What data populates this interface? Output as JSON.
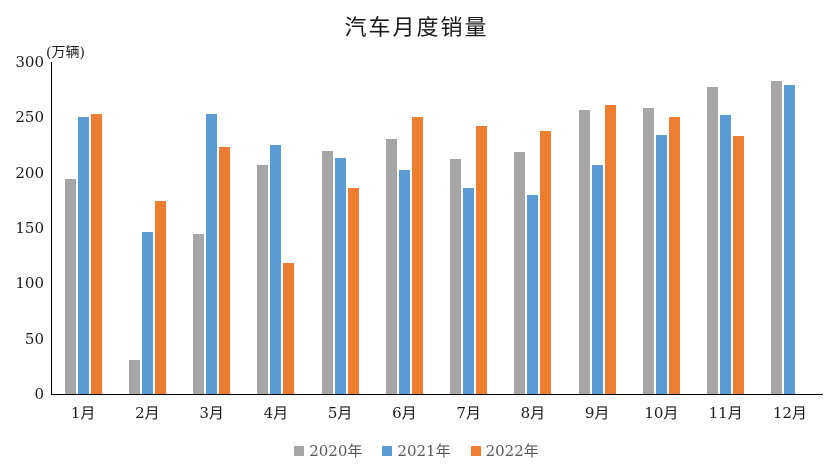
{
  "chart_data": {
    "type": "bar",
    "title": "汽车月度销量",
    "ylabel": "(万辆)",
    "xlabel": "",
    "categories": [
      "1月",
      "2月",
      "3月",
      "4月",
      "5月",
      "6月",
      "7月",
      "8月",
      "9月",
      "10月",
      "11月",
      "12月"
    ],
    "series": [
      {
        "name": "2020年",
        "color": "#A6A6A6",
        "values": [
          194,
          31,
          145,
          207,
          220,
          230,
          212,
          219,
          257,
          258,
          277,
          283
        ]
      },
      {
        "name": "2021年",
        "color": "#5B9BD5",
        "values": [
          250,
          146,
          253,
          225,
          213,
          202,
          186,
          180,
          207,
          234,
          252,
          279
        ]
      },
      {
        "name": "2022年",
        "color": "#ED7D31",
        "values": [
          253,
          174,
          223,
          118,
          186,
          250,
          242,
          238,
          261,
          250,
          233,
          null
        ]
      }
    ],
    "ylim": [
      0,
      300
    ],
    "y_ticks": [
      0,
      50,
      100,
      150,
      200,
      250,
      300
    ],
    "grid": false,
    "legend_position": "bottom"
  },
  "colors": {
    "background": "#ffffff",
    "axis": "#000000",
    "axis_text": "#1a1a1a",
    "legend_text": "#595959"
  }
}
